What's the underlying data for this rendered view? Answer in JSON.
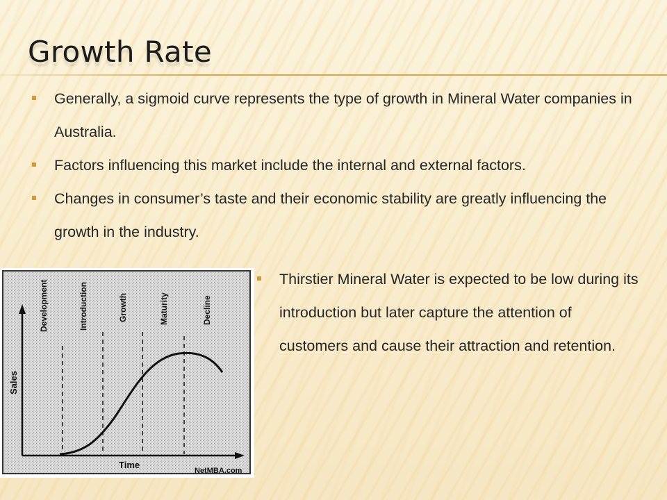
{
  "slide": {
    "title": "Growth Rate",
    "bullets": [
      "Generally, a sigmoid curve represents the type of growth in Mineral Water companies in Australia.",
      "Factors influencing this market include the internal and external factors.",
      "Changes in consumer’s taste and their economic stability are greatly influencing the growth in the industry."
    ],
    "side_bullets": [
      "Thirstier Mineral Water is expected to be low during its introduction but later capture the attention of customers and cause their attraction and retention."
    ]
  },
  "figure": {
    "stage_labels": [
      "Development",
      "Introduction",
      "Growth",
      "Maturity",
      "Decline"
    ],
    "y_axis_label": "Sales",
    "x_axis_label": "Time",
    "credit": "NetMBA.com",
    "colors": {
      "accent": "#d09a3c",
      "rule": "#d6a84e",
      "ink": "#111111"
    }
  }
}
